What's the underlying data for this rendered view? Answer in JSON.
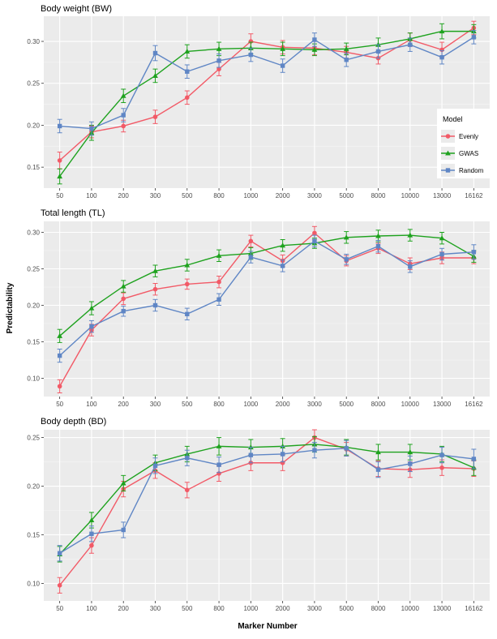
{
  "shared": {
    "xlabel": "Marker  Number",
    "ylabel": "Predictability",
    "categories": [
      "50",
      "100",
      "200",
      "300",
      "500",
      "800",
      "1000",
      "2000",
      "3000",
      "5000",
      "8000",
      "10000",
      "13000",
      "16162"
    ],
    "colors": {
      "Evenly": "#f25a67",
      "GWAS": "#1ea21e",
      "Random": "#5f86c5"
    },
    "legend": {
      "title": "Model",
      "entries": [
        "Evenly",
        "GWAS",
        "Random"
      ],
      "placement": "right of top panel"
    }
  },
  "chart_data": [
    {
      "type": "line",
      "title": "Body weight (BW)",
      "ylim": [
        0.125,
        0.33
      ],
      "yticks": [
        0.15,
        0.2,
        0.25,
        0.3
      ],
      "grid": true,
      "series": [
        {
          "name": "Evenly",
          "marker": "circle",
          "values": [
            0.158,
            0.192,
            0.199,
            0.21,
            0.233,
            0.267,
            0.3,
            0.293,
            0.292,
            0.287,
            0.28,
            0.302,
            0.29,
            0.316
          ],
          "err": [
            0.01,
            0.007,
            0.007,
            0.008,
            0.008,
            0.008,
            0.009,
            0.008,
            0.008,
            0.007,
            0.007,
            0.008,
            0.009,
            0.008
          ]
        },
        {
          "name": "GWAS",
          "marker": "triangle",
          "values": [
            0.139,
            0.191,
            0.235,
            0.259,
            0.288,
            0.291,
            0.292,
            0.291,
            0.29,
            0.291,
            0.296,
            0.303,
            0.312,
            0.312
          ],
          "err": [
            0.009,
            0.009,
            0.008,
            0.008,
            0.008,
            0.008,
            0.007,
            0.008,
            0.007,
            0.007,
            0.008,
            0.007,
            0.009,
            0.008
          ]
        },
        {
          "name": "Random",
          "marker": "square",
          "values": [
            0.199,
            0.196,
            0.212,
            0.286,
            0.264,
            0.277,
            0.284,
            0.271,
            0.302,
            0.278,
            0.288,
            0.296,
            0.281,
            0.305
          ],
          "err": [
            0.008,
            0.008,
            0.008,
            0.009,
            0.008,
            0.008,
            0.008,
            0.008,
            0.008,
            0.008,
            0.008,
            0.008,
            0.008,
            0.008
          ]
        }
      ]
    },
    {
      "type": "line",
      "title": "Total length (TL)",
      "ylim": [
        0.075,
        0.315
      ],
      "yticks": [
        0.1,
        0.15,
        0.2,
        0.25,
        0.3
      ],
      "grid": true,
      "series": [
        {
          "name": "Evenly",
          "marker": "circle",
          "values": [
            0.089,
            0.166,
            0.209,
            0.222,
            0.229,
            0.232,
            0.288,
            0.261,
            0.299,
            0.261,
            0.278,
            0.257,
            0.265,
            0.265
          ],
          "err": [
            0.009,
            0.008,
            0.008,
            0.008,
            0.007,
            0.008,
            0.008,
            0.008,
            0.009,
            0.007,
            0.007,
            0.008,
            0.008,
            0.008
          ]
        },
        {
          "name": "GWAS",
          "marker": "triangle",
          "values": [
            0.158,
            0.196,
            0.226,
            0.247,
            0.255,
            0.268,
            0.271,
            0.282,
            0.285,
            0.293,
            0.295,
            0.296,
            0.292,
            0.267
          ],
          "err": [
            0.009,
            0.009,
            0.008,
            0.008,
            0.008,
            0.008,
            0.008,
            0.008,
            0.007,
            0.008,
            0.008,
            0.008,
            0.008,
            0.008
          ]
        },
        {
          "name": "Random",
          "marker": "square",
          "values": [
            0.131,
            0.171,
            0.192,
            0.2,
            0.188,
            0.208,
            0.266,
            0.254,
            0.288,
            0.263,
            0.281,
            0.253,
            0.27,
            0.273
          ],
          "err": [
            0.009,
            0.008,
            0.007,
            0.008,
            0.008,
            0.008,
            0.008,
            0.008,
            0.008,
            0.007,
            0.008,
            0.008,
            0.008,
            0.01
          ]
        }
      ]
    },
    {
      "type": "line",
      "title": "Body depth (BD)",
      "ylim": [
        0.082,
        0.258
      ],
      "yticks": [
        0.1,
        0.15,
        0.2,
        0.25
      ],
      "grid": true,
      "series": [
        {
          "name": "Evenly",
          "marker": "circle",
          "values": [
            0.098,
            0.139,
            0.197,
            0.216,
            0.196,
            0.213,
            0.224,
            0.224,
            0.25,
            0.238,
            0.218,
            0.217,
            0.219,
            0.218
          ],
          "err": [
            0.008,
            0.008,
            0.008,
            0.008,
            0.008,
            0.008,
            0.008,
            0.008,
            0.008,
            0.007,
            0.008,
            0.008,
            0.008,
            0.008
          ]
        },
        {
          "name": "GWAS",
          "marker": "triangle",
          "values": [
            0.13,
            0.165,
            0.203,
            0.224,
            0.233,
            0.241,
            0.24,
            0.241,
            0.243,
            0.24,
            0.235,
            0.235,
            0.233,
            0.219
          ],
          "err": [
            0.008,
            0.008,
            0.008,
            0.008,
            0.008,
            0.009,
            0.008,
            0.008,
            0.008,
            0.008,
            0.008,
            0.008,
            0.008,
            0.008
          ]
        },
        {
          "name": "Random",
          "marker": "square",
          "values": [
            0.131,
            0.151,
            0.155,
            0.221,
            0.229,
            0.222,
            0.232,
            0.233,
            0.237,
            0.239,
            0.217,
            0.223,
            0.232,
            0.228
          ],
          "err": [
            0.008,
            0.008,
            0.008,
            0.008,
            0.008,
            0.008,
            0.008,
            0.008,
            0.008,
            0.008,
            0.008,
            0.008,
            0.008,
            0.01
          ]
        }
      ]
    }
  ]
}
